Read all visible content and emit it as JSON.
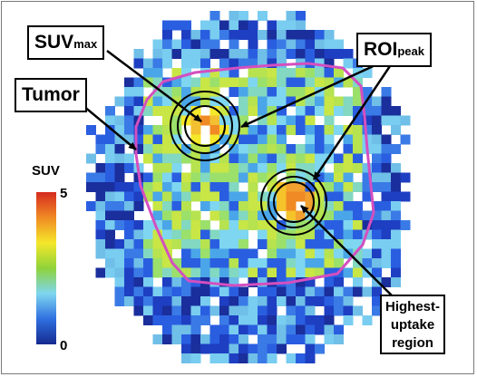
{
  "labels": {
    "suv_max_main": "SUV",
    "suv_max_sub": "max",
    "roi_main": "ROI",
    "roi_sub": "peak",
    "tumor": "Tumor",
    "highest_line1": "Highest-",
    "highest_line2": "uptake",
    "highest_line3": "region"
  },
  "color_scale": {
    "title": "SUV",
    "max_label": "5",
    "min_label": "0",
    "stops": [
      "#d62b1f",
      "#f08a24",
      "#f5e72a",
      "#8fd33a",
      "#7ed6f0",
      "#2f6fe0",
      "#152a8f"
    ]
  },
  "colors": {
    "tumor_outline": "#d44fc0",
    "background": "#ffffff"
  }
}
